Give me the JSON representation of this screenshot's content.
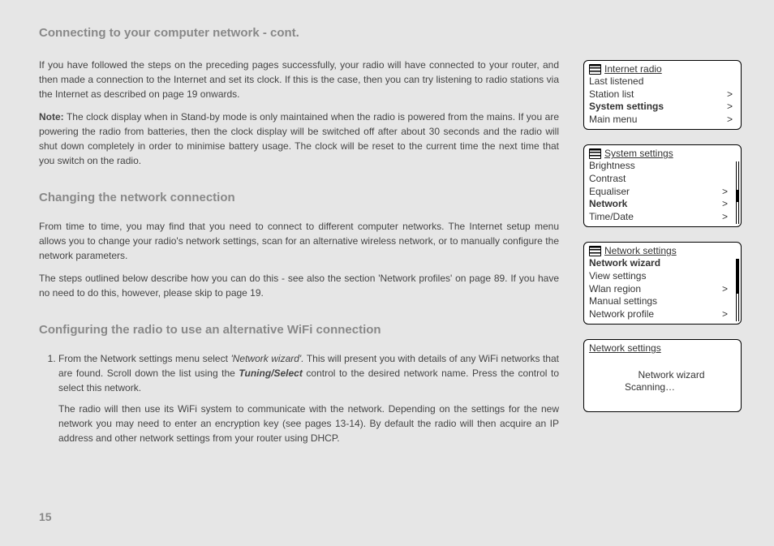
{
  "title": "Connecting to your computer network - cont.",
  "para1": "If you have followed the steps on the preceding pages successfully, your radio will have connected to your router, and then made a connection to the Internet and set its clock. If this is the case, then you can try listening to radio stations via the Internet as described on page 19 onwards.",
  "note_label": "Note:",
  "note_text": " The clock display when in Stand-by mode is only maintained when the radio is powered from the mains. If you are powering the radio from batteries, then the clock display will be switched off after about 30 seconds and the radio will shut down completely in order to minimise battery usage. The clock will be reset to the current time the next time that you switch on the radio.",
  "section2": "Changing the network connection",
  "para2": "From time to time, you may find that you need to connect to different computer networks. The Internet setup menu allows you to change your radio's network settings, scan for an alternative wireless network, or to manually configure the network parameters.",
  "para3": "The steps outlined below describe how you can do this - see also the section 'Network profiles' on page 89. If you have no need to do this, however, please skip to page 19.",
  "section3": "Configuring the radio to use an alternative WiFi connection",
  "step1a_pre": "From the Network settings menu select ",
  "step1a_em": "'Network wizard'.",
  "step1a_mid": " This will present you with details of any WiFi networks that are found. Scroll down the list using the ",
  "step1a_em2": "Tuning/Select",
  "step1a_post": " control to the desired network name. Press the control to select this network.",
  "step1b": "The radio will then use its WiFi system to communicate with the network. Depending on the settings for the new network you may need to enter an encryption key (see pages 13-14). By default the radio will then acquire an IP address and other network settings from your router using DHCP.",
  "page_number": "15",
  "menu1": {
    "header": "Internet radio",
    "items": [
      {
        "label": "Last listened",
        "gt": false,
        "bold": false
      },
      {
        "label": "Station list",
        "gt": true,
        "bold": false
      },
      {
        "label": "System settings",
        "gt": true,
        "bold": true
      },
      {
        "label": "Main menu",
        "gt": true,
        "bold": false
      }
    ]
  },
  "menu2": {
    "header": "System settings",
    "items": [
      {
        "label": "Brightness",
        "gt": false,
        "bold": false
      },
      {
        "label": "Contrast",
        "gt": false,
        "bold": false
      },
      {
        "label": "Equaliser",
        "gt": true,
        "bold": false
      },
      {
        "label": "Network",
        "gt": true,
        "bold": true
      },
      {
        "label": "Time/Date",
        "gt": true,
        "bold": false
      }
    ]
  },
  "menu3": {
    "header": "Network settings",
    "items": [
      {
        "label": "Network wizard",
        "gt": false,
        "bold": true
      },
      {
        "label": "View settings",
        "gt": false,
        "bold": false
      },
      {
        "label": "Wlan region",
        "gt": true,
        "bold": false
      },
      {
        "label": "Manual settings",
        "gt": false,
        "bold": false
      },
      {
        "label": "Network profile",
        "gt": true,
        "bold": false
      }
    ]
  },
  "menu4": {
    "header": "Network settings",
    "line1": "Network wizard",
    "line2": "Scanning…"
  }
}
